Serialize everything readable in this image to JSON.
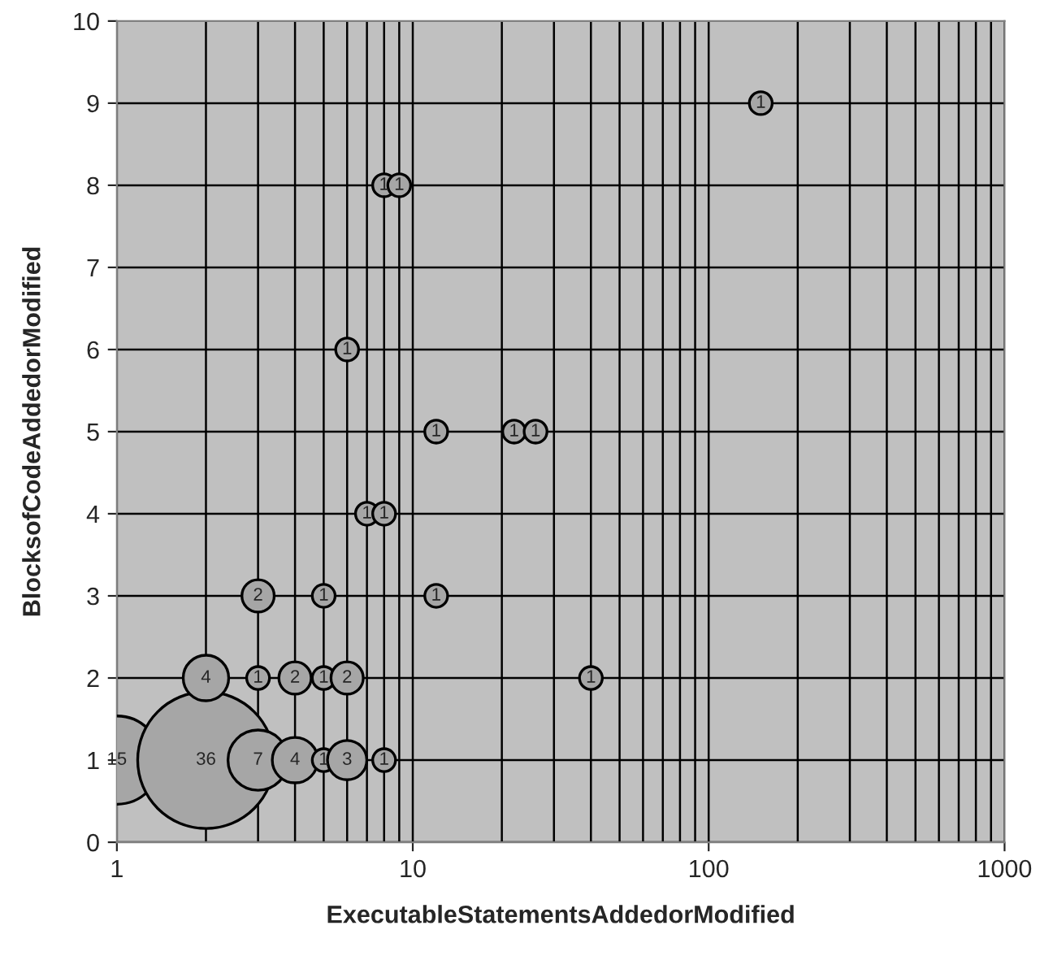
{
  "chart_data": {
    "type": "bubble",
    "xlabel": "ExecutableStatementsAddedorModified",
    "ylabel": "BlocksofCodeAddedorModified",
    "x": [
      1,
      2,
      3,
      4,
      5,
      6,
      8,
      2,
      3,
      4,
      5,
      6,
      40,
      3,
      5,
      12,
      7,
      8,
      12,
      22,
      26,
      6,
      8,
      9,
      150
    ],
    "values": [
      1,
      1,
      1,
      1,
      1,
      1,
      1,
      2,
      2,
      2,
      2,
      2,
      2,
      3,
      3,
      3,
      4,
      4,
      5,
      5,
      5,
      6,
      8,
      8,
      9
    ],
    "sizes": [
      0.417,
      1,
      0.194,
      0.111,
      0.028,
      0.083,
      0.028,
      0.111,
      0.028,
      0.056,
      0.028,
      0.056,
      0.028,
      0.056,
      0.028,
      0.028,
      0.028,
      0.028,
      0.028,
      0.028,
      0.028,
      0.028,
      0.028,
      0.028,
      0.028
    ],
    "color": "#a6a6a6",
    "annotations": [
      {
        "text": "15",
        "x": 1,
        "y": 1
      },
      {
        "text": "36",
        "x": 2,
        "y": 1
      },
      {
        "text": "7",
        "x": 3,
        "y": 1
      },
      {
        "text": "4",
        "x": 4,
        "y": 1
      },
      {
        "text": "1",
        "x": 5,
        "y": 1
      },
      {
        "text": "3",
        "x": 6,
        "y": 1
      },
      {
        "text": "1",
        "x": 8,
        "y": 1
      },
      {
        "text": "4",
        "x": 2,
        "y": 2
      },
      {
        "text": "1",
        "x": 3,
        "y": 2
      },
      {
        "text": "2",
        "x": 4,
        "y": 2
      },
      {
        "text": "1",
        "x": 5,
        "y": 2
      },
      {
        "text": "2",
        "x": 6,
        "y": 2
      },
      {
        "text": "1",
        "x": 40,
        "y": 2
      },
      {
        "text": "2",
        "x": 3,
        "y": 3
      },
      {
        "text": "1",
        "x": 5,
        "y": 3
      },
      {
        "text": "1",
        "x": 12,
        "y": 3
      },
      {
        "text": "1",
        "x": 7,
        "y": 4
      },
      {
        "text": "1",
        "x": 8,
        "y": 4
      },
      {
        "text": "1",
        "x": 12,
        "y": 5
      },
      {
        "text": "1",
        "x": 22,
        "y": 5
      },
      {
        "text": "1",
        "x": 26,
        "y": 5
      },
      {
        "text": "1",
        "x": 6,
        "y": 6
      },
      {
        "text": "1",
        "x": 8,
        "y": 8
      },
      {
        "text": "1",
        "x": 9,
        "y": 8
      },
      {
        "text": "1",
        "x": 150,
        "y": 9
      }
    ],
    "log": "x",
    "xlim": [
      1,
      1000
    ],
    "xticks": [
      1,
      10,
      100,
      1000
    ],
    "ylim": [
      0,
      10
    ],
    "yticks": [
      0,
      1,
      2,
      3,
      4,
      5,
      6,
      7,
      8,
      9,
      10
    ],
    "grid": true
  }
}
